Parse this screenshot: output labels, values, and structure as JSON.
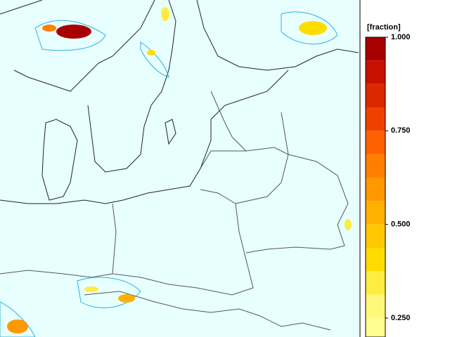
{
  "legend": {
    "title": "[fraction]",
    "lim": [
      0.25,
      1.0
    ],
    "ticks": [
      {
        "value": 1.0,
        "label": "1.000"
      },
      {
        "value": 0.75,
        "label": "0.750"
      },
      {
        "value": 0.5,
        "label": "0.500"
      },
      {
        "value": 0.25,
        "label": "0.250"
      }
    ],
    "bands": [
      {
        "min": 0.9375,
        "max": 1.0,
        "color": "#a80000"
      },
      {
        "min": 0.875,
        "max": 0.9375,
        "color": "#c81000"
      },
      {
        "min": 0.8125,
        "max": 0.875,
        "color": "#dc2800"
      },
      {
        "min": 0.75,
        "max": 0.8125,
        "color": "#f04000"
      },
      {
        "min": 0.6875,
        "max": 0.75,
        "color": "#ff6000"
      },
      {
        "min": 0.625,
        "max": 0.6875,
        "color": "#ff8000"
      },
      {
        "min": 0.5625,
        "max": 0.625,
        "color": "#ff9800"
      },
      {
        "min": 0.5,
        "max": 0.5625,
        "color": "#ffb000"
      },
      {
        "min": 0.4375,
        "max": 0.5,
        "color": "#ffc800"
      },
      {
        "min": 0.375,
        "max": 0.4375,
        "color": "#ffdc00"
      },
      {
        "min": 0.3125,
        "max": 0.375,
        "color": "#ffec40"
      },
      {
        "min": 0.25,
        "max": 0.3125,
        "color": "#fff878"
      },
      {
        "min": 0.1875,
        "max": 0.25,
        "color": "#ffff90"
      }
    ]
  }
}
